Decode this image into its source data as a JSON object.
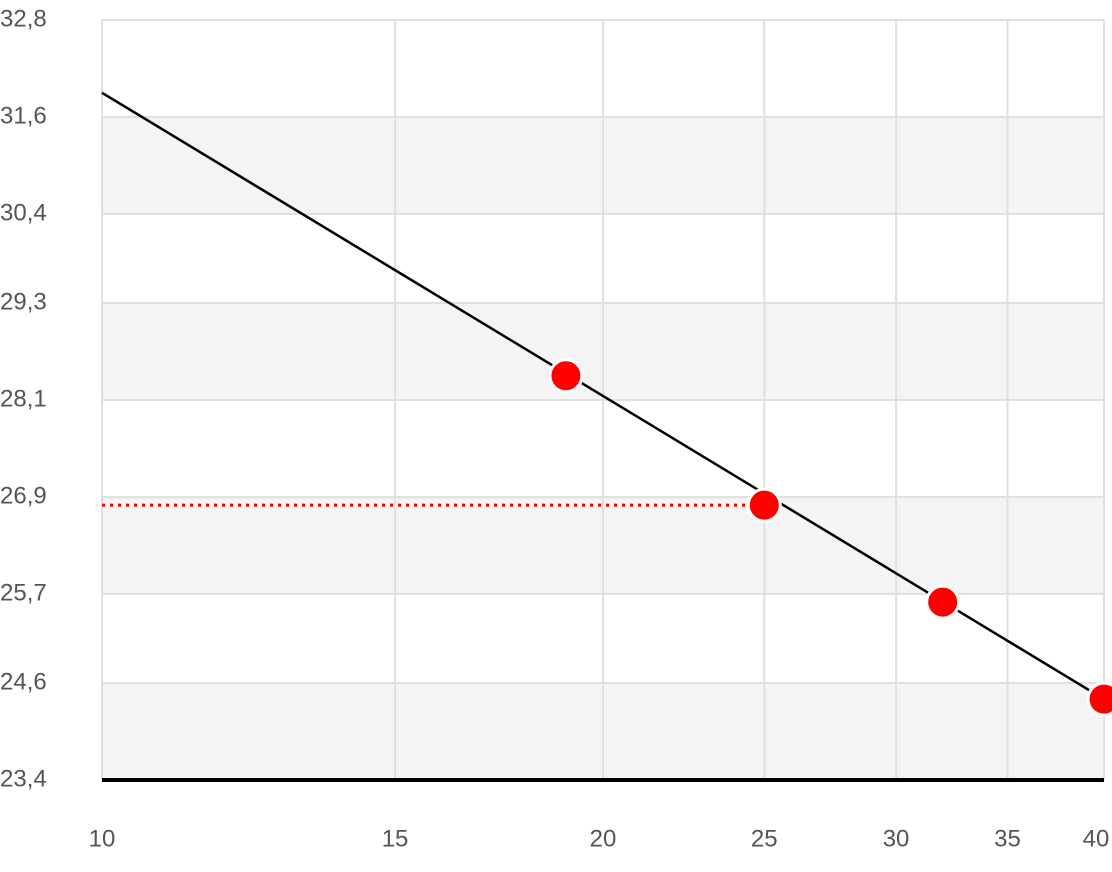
{
  "chart_data": {
    "type": "scatter",
    "x_scale": "log",
    "xlim": [
      10,
      40
    ],
    "xticks": [
      10,
      15,
      20,
      25,
      30,
      35,
      40
    ],
    "ylim": [
      23.4,
      32.8
    ],
    "yticks": [
      {
        "value": 23.4,
        "label": "23,4"
      },
      {
        "value": 24.6,
        "label": "24,6"
      },
      {
        "value": 25.7,
        "label": "25,7"
      },
      {
        "value": 26.9,
        "label": "26,9"
      },
      {
        "value": 28.1,
        "label": "28,1"
      },
      {
        "value": 29.3,
        "label": "29,3"
      },
      {
        "value": 30.4,
        "label": "30,4"
      },
      {
        "value": 31.6,
        "label": "31,6"
      },
      {
        "value": 32.8,
        "label": "32,8"
      }
    ],
    "grid": true,
    "band_color": "#f4f4f4",
    "line": {
      "color": "#000000",
      "x": [
        10,
        40
      ],
      "values": [
        31.9,
        24.4
      ]
    },
    "points": {
      "color": "#ff0000",
      "x": [
        19,
        25,
        32,
        40
      ],
      "values": [
        28.4,
        26.8,
        25.6,
        24.4
      ]
    },
    "highlight_point": 1
  }
}
